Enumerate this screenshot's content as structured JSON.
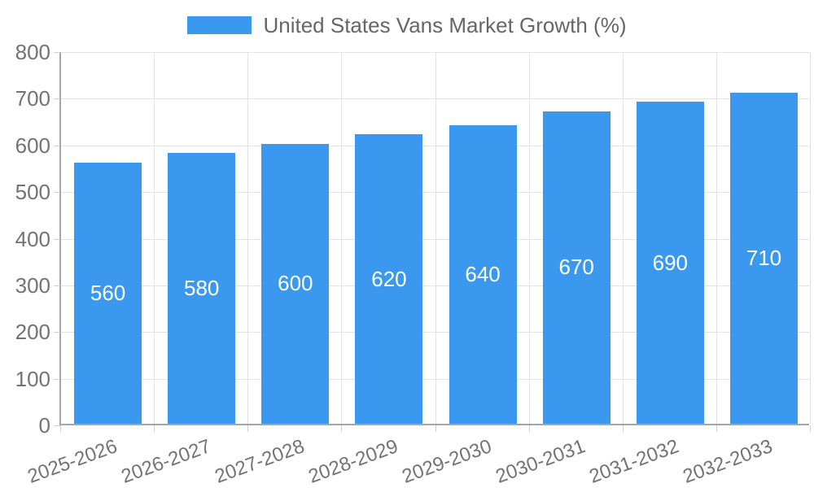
{
  "legend": {
    "label": "United States Vans Market Growth (%)"
  },
  "colors": {
    "bar": "#3A99EE",
    "grid": "#E3E3E3",
    "axis": "#A6A6A6",
    "tick_text": "#737373",
    "bar_label_text": "#FFFFFF",
    "legend_text": "#666666"
  },
  "chart_data": {
    "type": "bar",
    "title": "United States Vans Market Growth (%)",
    "categories": [
      "2025-2026",
      "2026-2027",
      "2027-2028",
      "2028-2029",
      "2029-2030",
      "2030-2031",
      "2031-2032",
      "2032-2033"
    ],
    "values": [
      560,
      580,
      600,
      620,
      640,
      670,
      690,
      710
    ],
    "xlabel": "",
    "ylabel": "",
    "ylim": [
      0,
      800
    ],
    "ytick_step": 100,
    "ytick_labels": [
      "0",
      "100",
      "200",
      "300",
      "400",
      "500",
      "600",
      "700",
      "800"
    ],
    "grid": true,
    "legend_position": "top",
    "value_labels": "inside-middle",
    "x_tick_rotation_deg": -20,
    "bar_color": "#3A99EE"
  }
}
